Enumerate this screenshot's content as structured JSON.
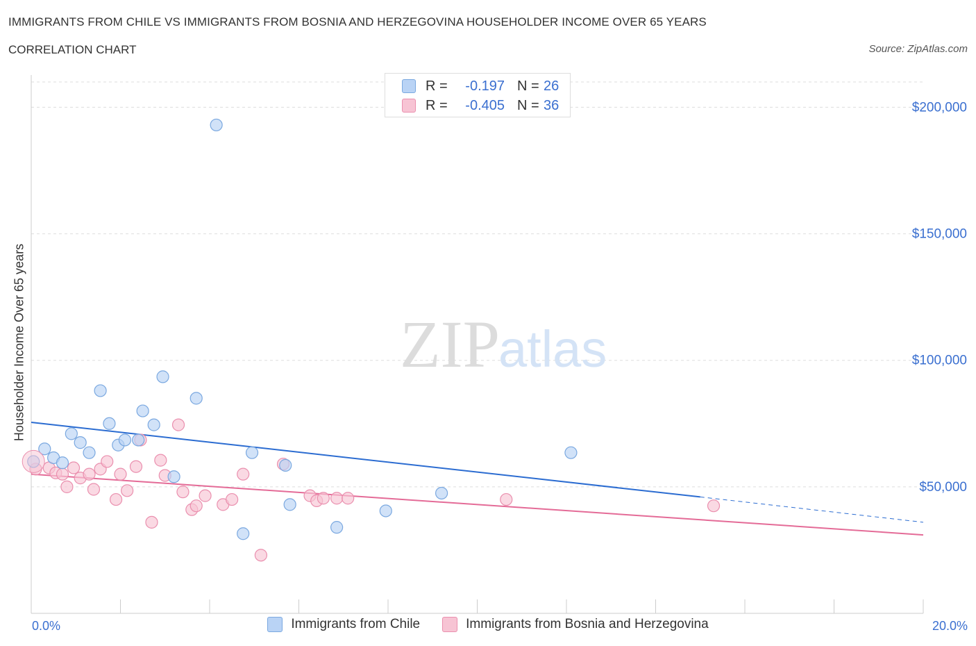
{
  "header": {
    "title": "IMMIGRANTS FROM CHILE VS IMMIGRANTS FROM BOSNIA AND HERZEGOVINA HOUSEHOLDER INCOME OVER 65 YEARS",
    "subtitle": "CORRELATION CHART",
    "source": "Source: ZipAtlas.com"
  },
  "watermark": "ZIPatlas",
  "legend": {
    "rows": [
      {
        "r_label": "R =",
        "r_value": "-0.197",
        "n_label": "N =",
        "n_value": "26",
        "color": "#b9d3f5"
      },
      {
        "r_label": "R =",
        "r_value": "-0.405",
        "n_label": "N =",
        "n_value": "36",
        "color": "#f7c4d4"
      }
    ]
  },
  "colors": {
    "chile_fill": "#b9d3f5",
    "chile_stroke": "#7aa8e0",
    "chile_line": "#2b6cd1",
    "bosnia_fill": "#f7c4d4",
    "bosnia_stroke": "#ea8fae",
    "bosnia_line": "#e46b97",
    "tick_label": "#3a6fd0",
    "grid": "#dddddd"
  },
  "chart_data": {
    "type": "scatter",
    "title": "IMMIGRANTS FROM CHILE VS IMMIGRANTS FROM BOSNIA AND HERZEGOVINA HOUSEHOLDER INCOME OVER 65 YEARS",
    "xlabel": "",
    "ylabel": "Householder Income Over 65 years",
    "xlim": [
      0,
      20
    ],
    "ylim": [
      0,
      200000
    ],
    "x_tick_labels": [
      "0.0%",
      "20.0%"
    ],
    "y_ticks": [
      50000,
      100000,
      150000,
      200000
    ],
    "y_tick_labels": [
      "$50,000",
      "$100,000",
      "$150,000",
      "$200,000"
    ],
    "grid": true,
    "legend_position": "bottom",
    "series": [
      {
        "name": "Immigrants from Chile",
        "points": [
          [
            0.05,
            60000
          ],
          [
            0.3,
            65000
          ],
          [
            0.5,
            61500
          ],
          [
            0.7,
            59500
          ],
          [
            0.9,
            71000
          ],
          [
            1.1,
            67500
          ],
          [
            1.3,
            63500
          ],
          [
            1.55,
            88000
          ],
          [
            1.75,
            75000
          ],
          [
            1.95,
            66500
          ],
          [
            2.1,
            68500
          ],
          [
            2.4,
            68500
          ],
          [
            2.5,
            80000
          ],
          [
            2.75,
            74500
          ],
          [
            2.95,
            93500
          ],
          [
            3.2,
            54000
          ],
          [
            3.7,
            85000
          ],
          [
            4.15,
            193000
          ],
          [
            4.75,
            31500
          ],
          [
            4.95,
            63500
          ],
          [
            5.7,
            58500
          ],
          [
            5.8,
            43000
          ],
          [
            6.85,
            34000
          ],
          [
            7.95,
            40500
          ],
          [
            9.2,
            47500
          ],
          [
            12.1,
            63500
          ]
        ],
        "trend": {
          "x0": 0,
          "y0": 75500,
          "x1": 15.0,
          "y1": 46000,
          "dashed_to_x": 20.0,
          "dashed_to_y": 36000
        }
      },
      {
        "name": "Immigrants from Bosnia and Herzegovina",
        "points": [
          [
            0.1,
            57000
          ],
          [
            0.4,
            57500
          ],
          [
            0.55,
            55500
          ],
          [
            0.7,
            55000
          ],
          [
            0.8,
            50000
          ],
          [
            0.95,
            57500
          ],
          [
            1.1,
            53500
          ],
          [
            1.3,
            55000
          ],
          [
            1.4,
            49000
          ],
          [
            1.55,
            57000
          ],
          [
            1.7,
            60000
          ],
          [
            1.9,
            45000
          ],
          [
            2.0,
            55000
          ],
          [
            2.15,
            48500
          ],
          [
            2.35,
            58000
          ],
          [
            2.45,
            68500
          ],
          [
            2.7,
            36000
          ],
          [
            2.9,
            60500
          ],
          [
            3.0,
            54500
          ],
          [
            3.3,
            74500
          ],
          [
            3.4,
            48000
          ],
          [
            3.6,
            41000
          ],
          [
            3.7,
            42500
          ],
          [
            3.9,
            46500
          ],
          [
            4.3,
            43000
          ],
          [
            4.5,
            45000
          ],
          [
            4.75,
            55000
          ],
          [
            5.15,
            23000
          ],
          [
            5.65,
            59000
          ],
          [
            6.25,
            46500
          ],
          [
            6.4,
            44500
          ],
          [
            6.55,
            45500
          ],
          [
            6.85,
            45500
          ],
          [
            7.1,
            45500
          ],
          [
            10.65,
            45000
          ],
          [
            15.3,
            42500
          ]
        ],
        "trend": {
          "x0": 0,
          "y0": 55000,
          "x1": 20.0,
          "y1": 31000
        }
      }
    ]
  },
  "bottom_legend": {
    "items": [
      {
        "label": "Immigrants from Chile",
        "color": "#b9d3f5"
      },
      {
        "label": "Immigrants from Bosnia and Herzegovina",
        "color": "#f7c4d4"
      }
    ]
  }
}
